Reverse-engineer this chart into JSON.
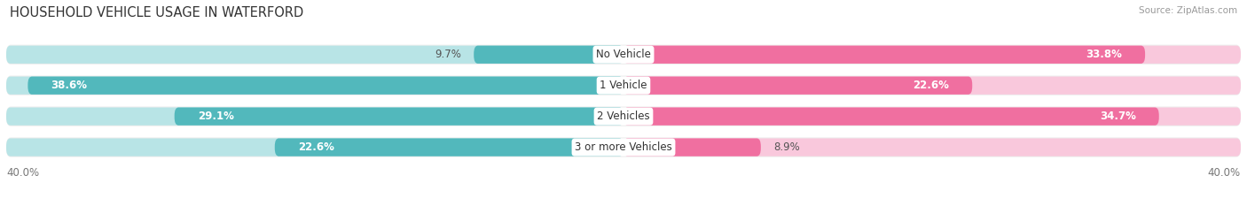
{
  "title": "HOUSEHOLD VEHICLE USAGE IN WATERFORD",
  "source": "Source: ZipAtlas.com",
  "categories": [
    "No Vehicle",
    "1 Vehicle",
    "2 Vehicles",
    "3 or more Vehicles"
  ],
  "owner_values": [
    9.7,
    38.6,
    29.1,
    22.6
  ],
  "renter_values": [
    33.8,
    22.6,
    34.7,
    8.9
  ],
  "owner_color": "#52b8bc",
  "renter_color": "#f06fa0",
  "owner_color_light": "#b8e4e6",
  "renter_color_light": "#f9c8dc",
  "row_bg_color": "#eeeeee",
  "axis_max": 40.0,
  "axis_label_left": "40.0%",
  "axis_label_right": "40.0%",
  "title_fontsize": 10.5,
  "source_fontsize": 7.5,
  "label_fontsize": 8.5,
  "cat_fontsize": 8.5,
  "bar_height": 0.58,
  "background_color": "#ffffff"
}
